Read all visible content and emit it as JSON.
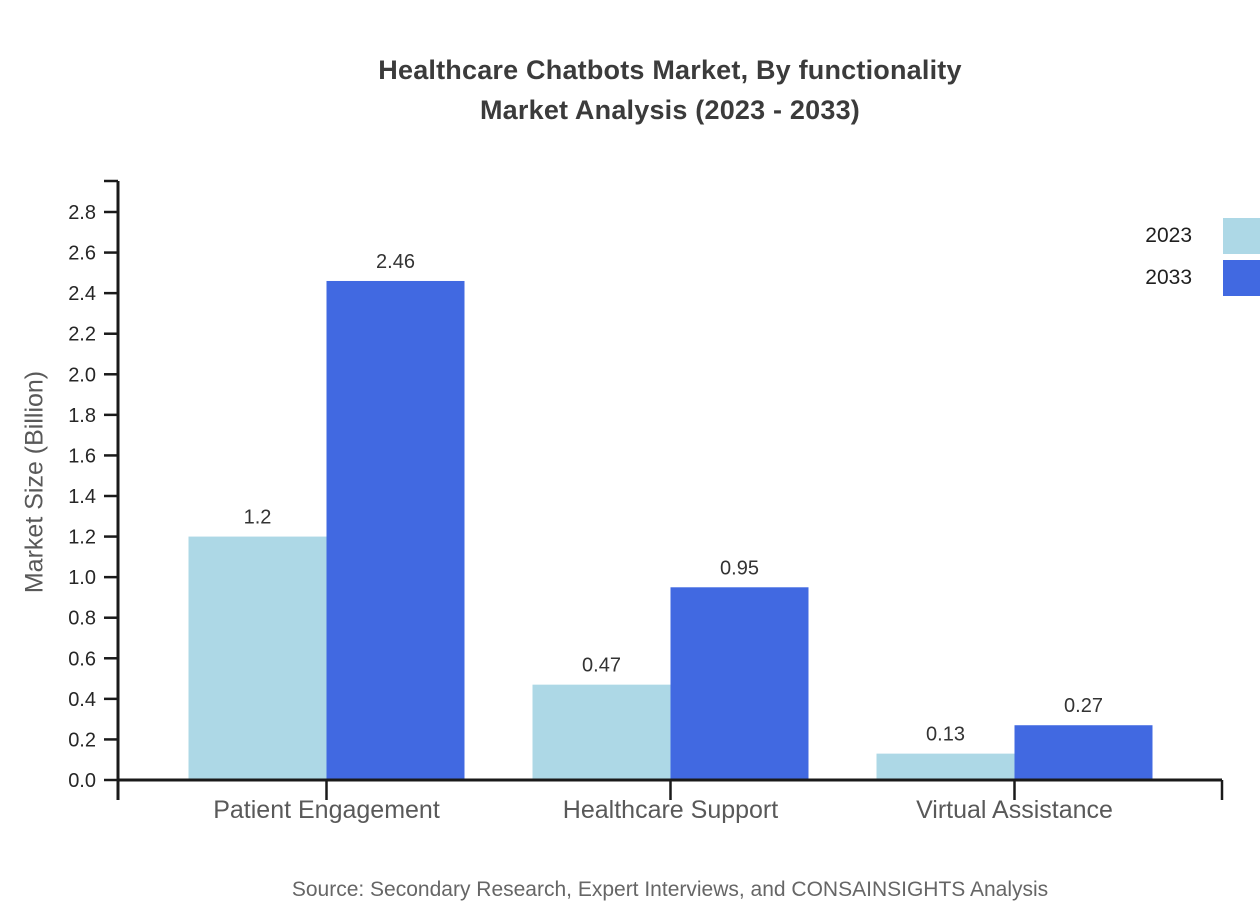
{
  "title": {
    "line1": "Healthcare Chatbots Market, By functionality",
    "line2": "Market Analysis (2023 - 2033)"
  },
  "source": "Source: Secondary Research, Expert Interviews, and CONSAINSIGHTS Analysis",
  "chart_data": {
    "type": "bar",
    "title": "Healthcare Chatbots Market, By functionality Market Analysis (2023 - 2033)",
    "categories": [
      "Patient Engagement",
      "Healthcare Support",
      "Virtual Assistance"
    ],
    "series": [
      {
        "name": "2023",
        "color": "#ADD8E6",
        "values": [
          1.2,
          0.47,
          0.13
        ],
        "value_labels": [
          "1.2",
          "0.47",
          "0.13"
        ]
      },
      {
        "name": "2033",
        "color": "#4169E1",
        "values": [
          2.46,
          0.95,
          0.27
        ],
        "value_labels": [
          "2.46",
          "0.95",
          "0.27"
        ]
      }
    ],
    "xlabel": "",
    "ylabel": "Market Size (Billion)",
    "ylim": [
      0.0,
      2.9
    ],
    "yticks": [
      0.0,
      0.2,
      0.4,
      0.6,
      0.8,
      1.0,
      1.2,
      1.4,
      1.6,
      1.8,
      2.0,
      2.2,
      2.4,
      2.6,
      2.8
    ],
    "ytick_format": "one_decimal",
    "grid": false,
    "legend_position": "top-right"
  },
  "colors": {
    "axis": "#1a1a1a",
    "tick_label": "#262626",
    "value_label": "#333333",
    "category_label": "#595959",
    "background": "#ffffff"
  }
}
